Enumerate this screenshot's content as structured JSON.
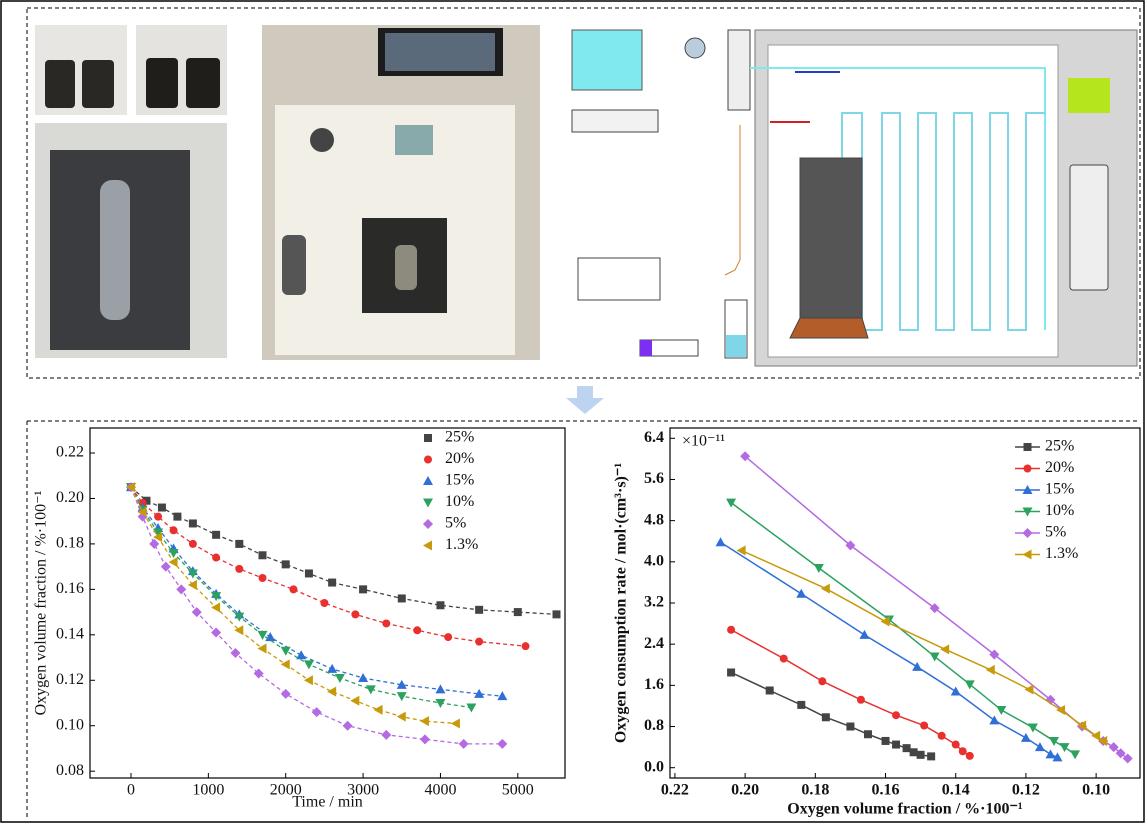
{
  "chart_data": [
    {
      "type": "scatter",
      "line_style": "dashed",
      "x_label": "Time / min",
      "y_label": "Oxygen volume fraction / %·100⁻¹",
      "xlim": [
        -530,
        5610
      ],
      "ylim": [
        0.077,
        0.231
      ],
      "xticks": [
        0,
        1000,
        2000,
        3000,
        4000,
        5000
      ],
      "yticks": [
        0.08,
        {
          "value": 0.1,
          "label": "0.10"
        },
        0.12,
        0.14,
        0.16,
        0.18,
        {
          "value": 0.2,
          "label": "0.20"
        },
        0.22
      ],
      "legend": "upper right",
      "series": [
        {
          "name": "25%",
          "color": "#444444",
          "marker": "square",
          "x": [
            0,
            200,
            400,
            600,
            800,
            1100,
            1400,
            1700,
            2000,
            2300,
            2600,
            3000,
            3500,
            4000,
            4500,
            5000,
            5500
          ],
          "values": [
            0.205,
            0.199,
            0.196,
            0.192,
            0.189,
            0.184,
            0.18,
            0.175,
            0.171,
            0.167,
            0.163,
            0.16,
            0.156,
            0.153,
            0.151,
            0.15,
            0.149
          ]
        },
        {
          "name": "20%",
          "color": "#e8312f",
          "marker": "circle",
          "x": [
            0,
            150,
            350,
            550,
            800,
            1100,
            1400,
            1700,
            2100,
            2500,
            2900,
            3300,
            3700,
            4100,
            4500,
            5100
          ],
          "values": [
            0.205,
            0.198,
            0.192,
            0.186,
            0.18,
            0.174,
            0.169,
            0.165,
            0.16,
            0.154,
            0.149,
            0.145,
            0.142,
            0.139,
            0.137,
            0.135
          ]
        },
        {
          "name": "15%",
          "color": "#2f6fd6",
          "marker": "triangle-up",
          "x": [
            0,
            150,
            350,
            550,
            800,
            1100,
            1400,
            1800,
            2200,
            2600,
            3000,
            3500,
            4000,
            4500,
            4800
          ],
          "values": [
            0.205,
            0.196,
            0.187,
            0.178,
            0.168,
            0.158,
            0.149,
            0.139,
            0.131,
            0.125,
            0.121,
            0.118,
            0.116,
            0.114,
            0.113
          ]
        },
        {
          "name": "10%",
          "color": "#2ca25f",
          "marker": "triangle-down",
          "x": [
            0,
            150,
            350,
            550,
            800,
            1100,
            1400,
            1700,
            2000,
            2300,
            2700,
            3100,
            3500,
            4000,
            4400
          ],
          "values": [
            0.205,
            0.195,
            0.185,
            0.176,
            0.167,
            0.157,
            0.148,
            0.14,
            0.133,
            0.127,
            0.121,
            0.116,
            0.113,
            0.11,
            0.108
          ]
        },
        {
          "name": "5%",
          "color": "#b36ae2",
          "marker": "diamond",
          "x": [
            0,
            150,
            300,
            450,
            650,
            850,
            1100,
            1350,
            1650,
            2000,
            2400,
            2800,
            3300,
            3800,
            4300,
            4800
          ],
          "values": [
            0.205,
            0.192,
            0.18,
            0.17,
            0.16,
            0.15,
            0.141,
            0.132,
            0.123,
            0.114,
            0.106,
            0.1,
            0.096,
            0.094,
            0.092,
            0.092
          ]
        },
        {
          "name": "1.3%",
          "color": "#c79a0b",
          "marker": "triangle-left",
          "x": [
            0,
            150,
            350,
            550,
            800,
            1100,
            1400,
            1700,
            2000,
            2300,
            2600,
            2900,
            3200,
            3500,
            3800,
            4200
          ],
          "values": [
            0.205,
            0.194,
            0.183,
            0.172,
            0.162,
            0.152,
            0.142,
            0.134,
            0.127,
            0.12,
            0.115,
            0.111,
            0.107,
            0.104,
            0.102,
            0.101
          ]
        }
      ]
    },
    {
      "type": "line",
      "line_style": "solid",
      "x_label": "Oxygen volume fraction / %·100⁻¹",
      "y_label": "Oxygen consumption rate / mol·(cm³·s)⁻¹",
      "annotation": "×10⁻¹¹",
      "xlim": [
        0.2214,
        0.0875
      ],
      "ylim": [
        -0.2,
        6.6
      ],
      "xticks": [
        0.22,
        {
          "value": 0.2,
          "label": "0.20"
        },
        0.18,
        0.16,
        0.14,
        0.12,
        {
          "value": 0.1,
          "label": "0.10"
        }
      ],
      "yticks": [
        {
          "value": 0,
          "label": "0.0"
        },
        0.8,
        1.6,
        2.4,
        3.2,
        {
          "value": 4,
          "label": "4.0"
        },
        4.8,
        5.6,
        6.4
      ],
      "legend": "upper right",
      "series": [
        {
          "name": "25%",
          "color": "#444444",
          "marker": "square",
          "x": [
            0.204,
            0.193,
            0.184,
            0.177,
            0.17,
            0.165,
            0.16,
            0.157,
            0.154,
            0.152,
            0.15,
            0.147
          ],
          "values": [
            1.85,
            1.5,
            1.22,
            0.98,
            0.8,
            0.65,
            0.52,
            0.45,
            0.38,
            0.3,
            0.25,
            0.22
          ]
        },
        {
          "name": "20%",
          "color": "#e8312f",
          "marker": "circle",
          "x": [
            0.204,
            0.189,
            0.178,
            0.167,
            0.157,
            0.149,
            0.144,
            0.14,
            0.138,
            0.136
          ],
          "values": [
            2.68,
            2.12,
            1.68,
            1.32,
            1.02,
            0.82,
            0.62,
            0.45,
            0.32,
            0.23
          ]
        },
        {
          "name": "15%",
          "color": "#2f6fd6",
          "marker": "triangle-up",
          "x": [
            0.207,
            0.184,
            0.166,
            0.151,
            0.14,
            0.129,
            0.12,
            0.116,
            0.113,
            0.111
          ],
          "values": [
            4.38,
            3.38,
            2.58,
            1.96,
            1.48,
            0.92,
            0.58,
            0.4,
            0.26,
            0.2
          ]
        },
        {
          "name": "10%",
          "color": "#2ca25f",
          "marker": "triangle-down",
          "x": [
            0.204,
            0.179,
            0.159,
            0.146,
            0.136,
            0.127,
            0.118,
            0.112,
            0.109,
            0.106
          ],
          "values": [
            5.15,
            3.88,
            2.88,
            2.16,
            1.62,
            1.12,
            0.78,
            0.52,
            0.4,
            0.26
          ]
        },
        {
          "name": "5%",
          "color": "#b36ae2",
          "marker": "diamond",
          "x": [
            0.2,
            0.17,
            0.146,
            0.129,
            0.113,
            0.104,
            0.098,
            0.095,
            0.093,
            0.091
          ],
          "values": [
            6.05,
            4.32,
            3.1,
            2.2,
            1.32,
            0.8,
            0.52,
            0.4,
            0.28,
            0.18
          ]
        },
        {
          "name": "1.3%",
          "color": "#c79a0b",
          "marker": "triangle-left",
          "x": [
            0.201,
            0.177,
            0.16,
            0.143,
            0.13,
            0.119,
            0.11,
            0.104,
            0.1,
            0.098
          ],
          "values": [
            4.22,
            3.48,
            2.84,
            2.3,
            1.9,
            1.52,
            1.12,
            0.82,
            0.62,
            0.52
          ]
        }
      ]
    }
  ]
}
